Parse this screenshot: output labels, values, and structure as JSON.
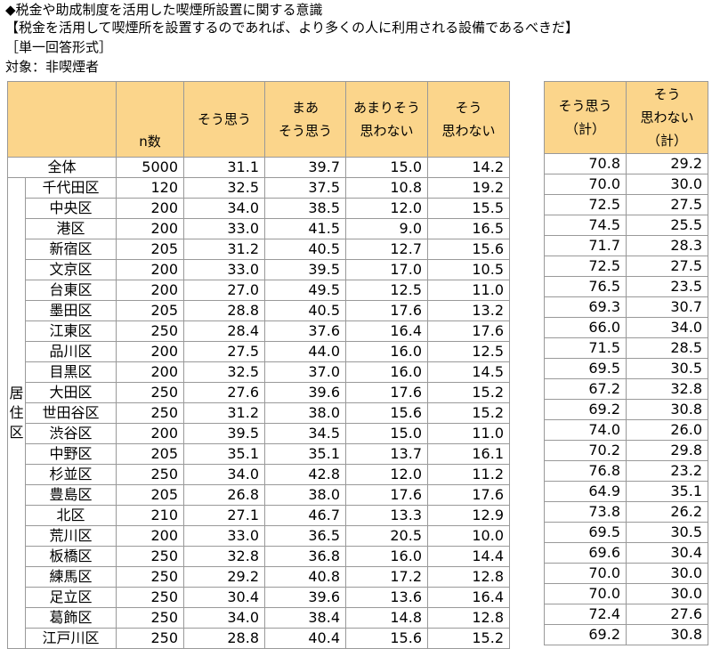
{
  "header": {
    "line1": "◆税金や助成制度を活用した喫煙所設置に関する意識",
    "line2": "【税金を活用して喫煙所を設置するのであれば、より多くの人に利用される設備であるべきだ】",
    "line3": "［単一回答形式］",
    "line4": "対象：非喫煙者"
  },
  "chart_data": {
    "type": "table",
    "group_label": "居住区",
    "columns": {
      "n": "n数",
      "c1": "そう思う",
      "c2_line1": "まあ",
      "c2_line2": "そう思う",
      "c3_line1": "あまりそう",
      "c3_line2": "思わない",
      "c4_line1": "そう",
      "c4_line2": "思わない",
      "s1_line1": "そう思う",
      "s1_line2": "（計）",
      "s2_line1": "そう",
      "s2_line2": "思わない",
      "s2_line3": "（計）"
    },
    "rows": [
      {
        "label": "全体",
        "n": "5000",
        "v": [
          "31.1",
          "39.7",
          "15.0",
          "14.2"
        ],
        "s": [
          "70.8",
          "29.2"
        ]
      },
      {
        "label": "千代田区",
        "n": "120",
        "v": [
          "32.5",
          "37.5",
          "10.8",
          "19.2"
        ],
        "s": [
          "70.0",
          "30.0"
        ]
      },
      {
        "label": "中央区",
        "n": "200",
        "v": [
          "34.0",
          "38.5",
          "12.0",
          "15.5"
        ],
        "s": [
          "72.5",
          "27.5"
        ]
      },
      {
        "label": "港区",
        "n": "200",
        "v": [
          "33.0",
          "41.5",
          "9.0",
          "16.5"
        ],
        "s": [
          "74.5",
          "25.5"
        ]
      },
      {
        "label": "新宿区",
        "n": "205",
        "v": [
          "31.2",
          "40.5",
          "12.7",
          "15.6"
        ],
        "s": [
          "71.7",
          "28.3"
        ]
      },
      {
        "label": "文京区",
        "n": "200",
        "v": [
          "33.0",
          "39.5",
          "17.0",
          "10.5"
        ],
        "s": [
          "72.5",
          "27.5"
        ]
      },
      {
        "label": "台東区",
        "n": "200",
        "v": [
          "27.0",
          "49.5",
          "12.5",
          "11.0"
        ],
        "s": [
          "76.5",
          "23.5"
        ]
      },
      {
        "label": "墨田区",
        "n": "205",
        "v": [
          "28.8",
          "40.5",
          "17.6",
          "13.2"
        ],
        "s": [
          "69.3",
          "30.7"
        ]
      },
      {
        "label": "江東区",
        "n": "250",
        "v": [
          "28.4",
          "37.6",
          "16.4",
          "17.6"
        ],
        "s": [
          "66.0",
          "34.0"
        ]
      },
      {
        "label": "品川区",
        "n": "200",
        "v": [
          "27.5",
          "44.0",
          "16.0",
          "12.5"
        ],
        "s": [
          "71.5",
          "28.5"
        ]
      },
      {
        "label": "目黒区",
        "n": "200",
        "v": [
          "32.5",
          "37.0",
          "16.0",
          "14.5"
        ],
        "s": [
          "69.5",
          "30.5"
        ]
      },
      {
        "label": "大田区",
        "n": "250",
        "v": [
          "27.6",
          "39.6",
          "17.6",
          "15.2"
        ],
        "s": [
          "67.2",
          "32.8"
        ]
      },
      {
        "label": "世田谷区",
        "n": "250",
        "v": [
          "31.2",
          "38.0",
          "15.6",
          "15.2"
        ],
        "s": [
          "69.2",
          "30.8"
        ]
      },
      {
        "label": "渋谷区",
        "n": "200",
        "v": [
          "39.5",
          "34.5",
          "15.0",
          "11.0"
        ],
        "s": [
          "74.0",
          "26.0"
        ]
      },
      {
        "label": "中野区",
        "n": "205",
        "v": [
          "35.1",
          "35.1",
          "13.7",
          "16.1"
        ],
        "s": [
          "70.2",
          "29.8"
        ]
      },
      {
        "label": "杉並区",
        "n": "250",
        "v": [
          "34.0",
          "42.8",
          "12.0",
          "11.2"
        ],
        "s": [
          "76.8",
          "23.2"
        ]
      },
      {
        "label": "豊島区",
        "n": "205",
        "v": [
          "26.8",
          "38.0",
          "17.6",
          "17.6"
        ],
        "s": [
          "64.9",
          "35.1"
        ]
      },
      {
        "label": "北区",
        "n": "210",
        "v": [
          "27.1",
          "46.7",
          "13.3",
          "12.9"
        ],
        "s": [
          "73.8",
          "26.2"
        ]
      },
      {
        "label": "荒川区",
        "n": "200",
        "v": [
          "33.0",
          "36.5",
          "20.5",
          "10.0"
        ],
        "s": [
          "69.5",
          "30.5"
        ]
      },
      {
        "label": "板橋区",
        "n": "250",
        "v": [
          "32.8",
          "36.8",
          "16.0",
          "14.4"
        ],
        "s": [
          "69.6",
          "30.4"
        ]
      },
      {
        "label": "練馬区",
        "n": "250",
        "v": [
          "29.2",
          "40.8",
          "17.2",
          "12.8"
        ],
        "s": [
          "70.0",
          "30.0"
        ]
      },
      {
        "label": "足立区",
        "n": "250",
        "v": [
          "30.4",
          "39.6",
          "13.6",
          "16.4"
        ],
        "s": [
          "70.0",
          "30.0"
        ]
      },
      {
        "label": "葛飾区",
        "n": "250",
        "v": [
          "34.0",
          "38.4",
          "14.8",
          "12.8"
        ],
        "s": [
          "72.4",
          "27.6"
        ]
      },
      {
        "label": "江戸川区",
        "n": "250",
        "v": [
          "28.8",
          "40.4",
          "15.6",
          "15.2"
        ],
        "s": [
          "69.2",
          "30.8"
        ]
      }
    ]
  }
}
